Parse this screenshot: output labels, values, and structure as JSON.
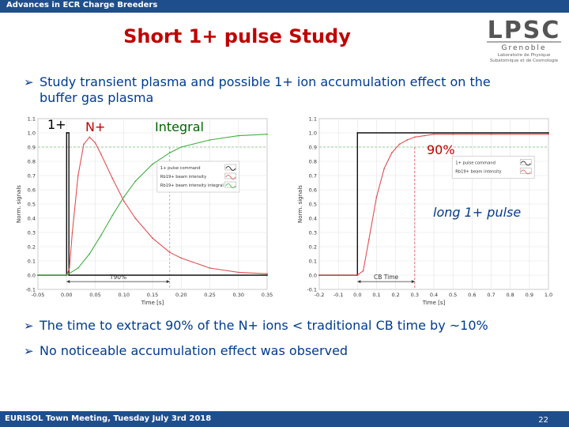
{
  "header": {
    "conference": "Advances in ECR Charge Breeders"
  },
  "slide": {
    "title": "Short 1+ pulse Study"
  },
  "logo": {
    "letters": "LPSC",
    "city": "Grenoble",
    "tag1": "Laboratoire de Physique",
    "tag2": "Subatomique et de Cosmologie"
  },
  "bullets": [
    {
      "line1": "Study transient plasma and possible 1+ ion accumulation effect on the",
      "line2": "buffer gas plasma"
    },
    {
      "text": "The time to extract 90% of the N+ ions < traditional CB time by ~10%"
    },
    {
      "text": "No noticeable accumulation effect was observed"
    }
  ],
  "annotations": {
    "one_plus": "1+",
    "n_plus": "N+",
    "integral": "Integral",
    "ninety": "90%",
    "long_pulse": "long 1+ pulse"
  },
  "footer": {
    "text": "EURISOL Town Meeting, Tuesday July 3rd 2018",
    "page": "22"
  },
  "colors": {
    "bar": "#1f4e8c",
    "title": "#c00000",
    "text": "#003b8f",
    "red_curve": "#e05050",
    "green_curve": "#40b040",
    "black_curve": "#111111"
  },
  "chart_data": [
    {
      "type": "line",
      "title": "",
      "xlabel": "Time [s]",
      "ylabel": "Norm. signals",
      "xlim": [
        -0.05,
        0.35
      ],
      "ylim": [
        -0.1,
        1.1
      ],
      "xticks": [
        "-0.05",
        "0.00",
        "0.05",
        "0.10",
        "0.15",
        "0.20",
        "0.25",
        "0.30",
        "0.35"
      ],
      "yticks": [
        "-0.1",
        "0.0",
        "0.1",
        "0.2",
        "0.3",
        "0.4",
        "0.5",
        "0.6",
        "0.7",
        "0.8",
        "0.9",
        "1.0",
        "1.1"
      ],
      "legend": [
        "1+ pulse command",
        "Rb19+ beam intensity",
        "Rb19+ beam intensity integral"
      ],
      "annotation": "T90%",
      "series": [
        {
          "name": "1+ pulse command",
          "x": [
            -0.05,
            0.0,
            0.0,
            0.004,
            0.004,
            0.35
          ],
          "y": [
            0.0,
            0.0,
            1.0,
            1.0,
            0.0,
            0.0
          ]
        },
        {
          "name": "Rb19+ beam intensity",
          "x": [
            -0.05,
            0.0,
            0.005,
            0.01,
            0.02,
            0.03,
            0.04,
            0.05,
            0.06,
            0.08,
            0.1,
            0.12,
            0.15,
            0.18,
            0.2,
            0.25,
            0.3,
            0.35
          ],
          "y": [
            0.0,
            0.0,
            0.05,
            0.3,
            0.7,
            0.92,
            0.97,
            0.93,
            0.85,
            0.68,
            0.52,
            0.4,
            0.26,
            0.16,
            0.12,
            0.05,
            0.02,
            0.01
          ]
        },
        {
          "name": "Rb19+ beam intensity integral",
          "x": [
            -0.05,
            0.0,
            0.02,
            0.04,
            0.06,
            0.08,
            0.1,
            0.12,
            0.15,
            0.18,
            0.2,
            0.25,
            0.3,
            0.35
          ],
          "y": [
            0.0,
            0.0,
            0.05,
            0.15,
            0.28,
            0.42,
            0.55,
            0.66,
            0.78,
            0.86,
            0.9,
            0.95,
            0.98,
            0.99
          ]
        }
      ]
    },
    {
      "type": "line",
      "title": "",
      "xlabel": "Time [s]",
      "ylabel": "Norm. signals",
      "xlim": [
        -0.2,
        1.0
      ],
      "ylim": [
        -0.1,
        1.1
      ],
      "xticks": [
        "-0.2",
        "-0.1",
        "0.0",
        "0.1",
        "0.2",
        "0.3",
        "0.4",
        "0.5",
        "0.6",
        "0.7",
        "0.8",
        "0.9",
        "1.0"
      ],
      "yticks": [
        "-0.1",
        "0.0",
        "0.1",
        "0.2",
        "0.3",
        "0.4",
        "0.5",
        "0.6",
        "0.7",
        "0.8",
        "0.9",
        "1.0",
        "1.1"
      ],
      "legend": [
        "1+ pulse command",
        "Rb19+ beam intensity"
      ],
      "annotation": "CB Time",
      "series": [
        {
          "name": "1+ pulse command",
          "x": [
            -0.2,
            0.0,
            0.0,
            1.0
          ],
          "y": [
            0.0,
            0.0,
            1.0,
            1.0
          ]
        },
        {
          "name": "Rb19+ beam intensity",
          "x": [
            -0.2,
            0.0,
            0.03,
            0.06,
            0.1,
            0.14,
            0.18,
            0.22,
            0.26,
            0.3,
            0.35,
            0.4,
            0.5,
            0.7,
            1.0
          ],
          "y": [
            0.0,
            0.0,
            0.03,
            0.25,
            0.55,
            0.75,
            0.86,
            0.92,
            0.95,
            0.97,
            0.98,
            0.99,
            0.99,
            0.99,
            0.99
          ]
        }
      ]
    }
  ]
}
